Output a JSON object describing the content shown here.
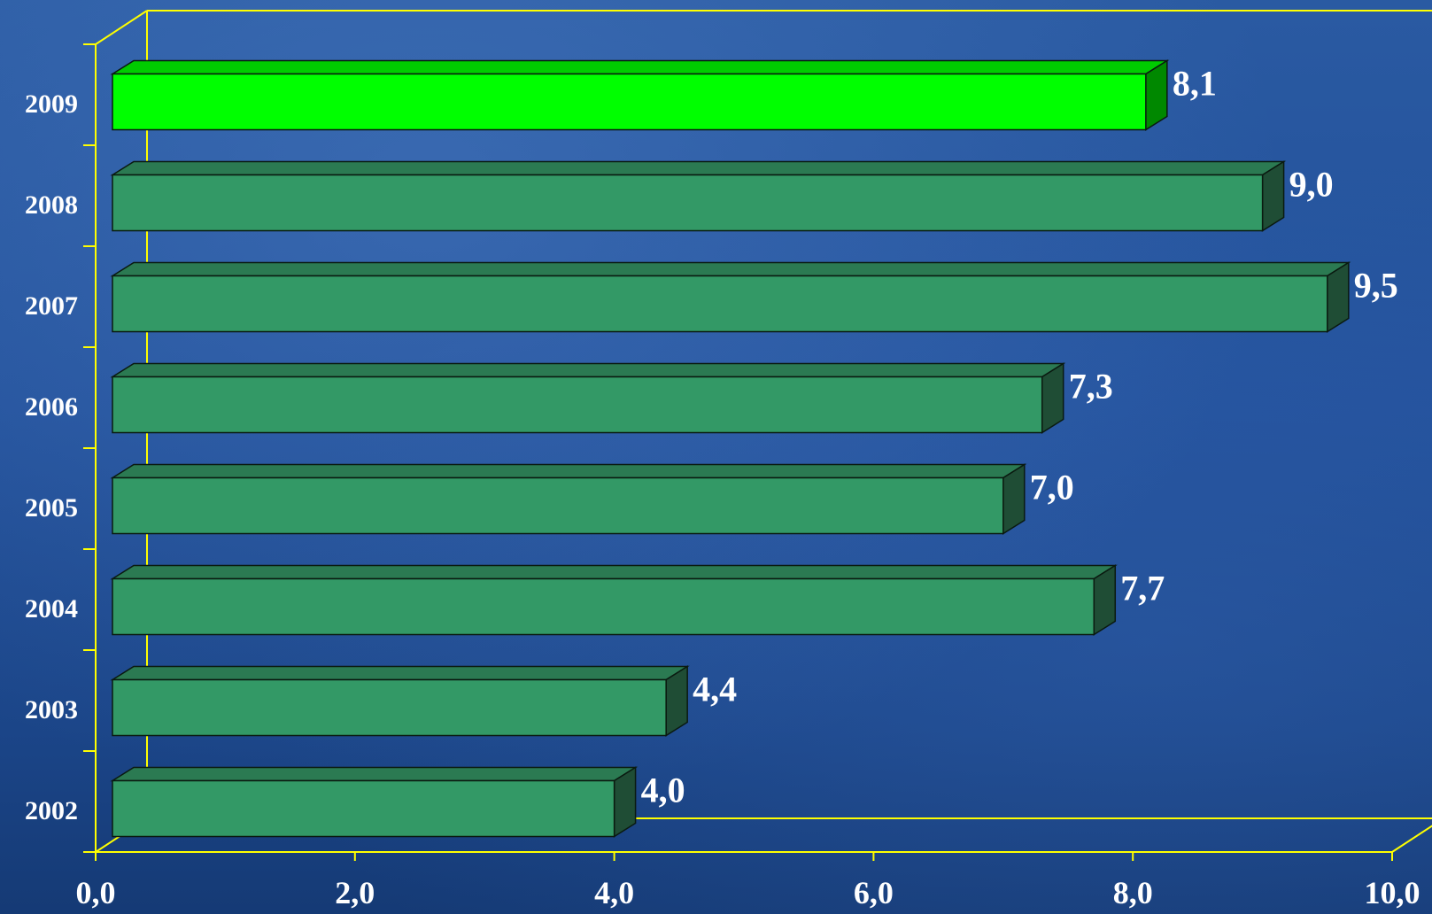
{
  "chart_data": {
    "type": "bar",
    "orientation": "horizontal",
    "categories": [
      "2002",
      "2003",
      "2004",
      "2005",
      "2006",
      "2007",
      "2008",
      "2009"
    ],
    "values": [
      4.0,
      4.4,
      7.7,
      7.0,
      7.3,
      9.5,
      9.0,
      8.1
    ],
    "value_labels": [
      "4,0",
      "4,4",
      "7,7",
      "7,0",
      "7,3",
      "9,5",
      "9,0",
      "8,1"
    ],
    "x_ticks": [
      "0,0",
      "2,0",
      "4,0",
      "6,0",
      "8,0",
      "10,0"
    ],
    "xlim": [
      0,
      10
    ],
    "title": "",
    "xlabel": "",
    "ylabel": "",
    "grid": false,
    "legend": "none",
    "colors": {
      "bar_front": "#339966",
      "bar_top": "#2b7a52",
      "bar_side": "#1f4d35",
      "highlight_front": "#00ff00",
      "highlight_top": "#00cc00",
      "highlight_side": "#008800",
      "axis": "#ffff00",
      "text": "#ffffff"
    },
    "highlight_category": "2009"
  }
}
